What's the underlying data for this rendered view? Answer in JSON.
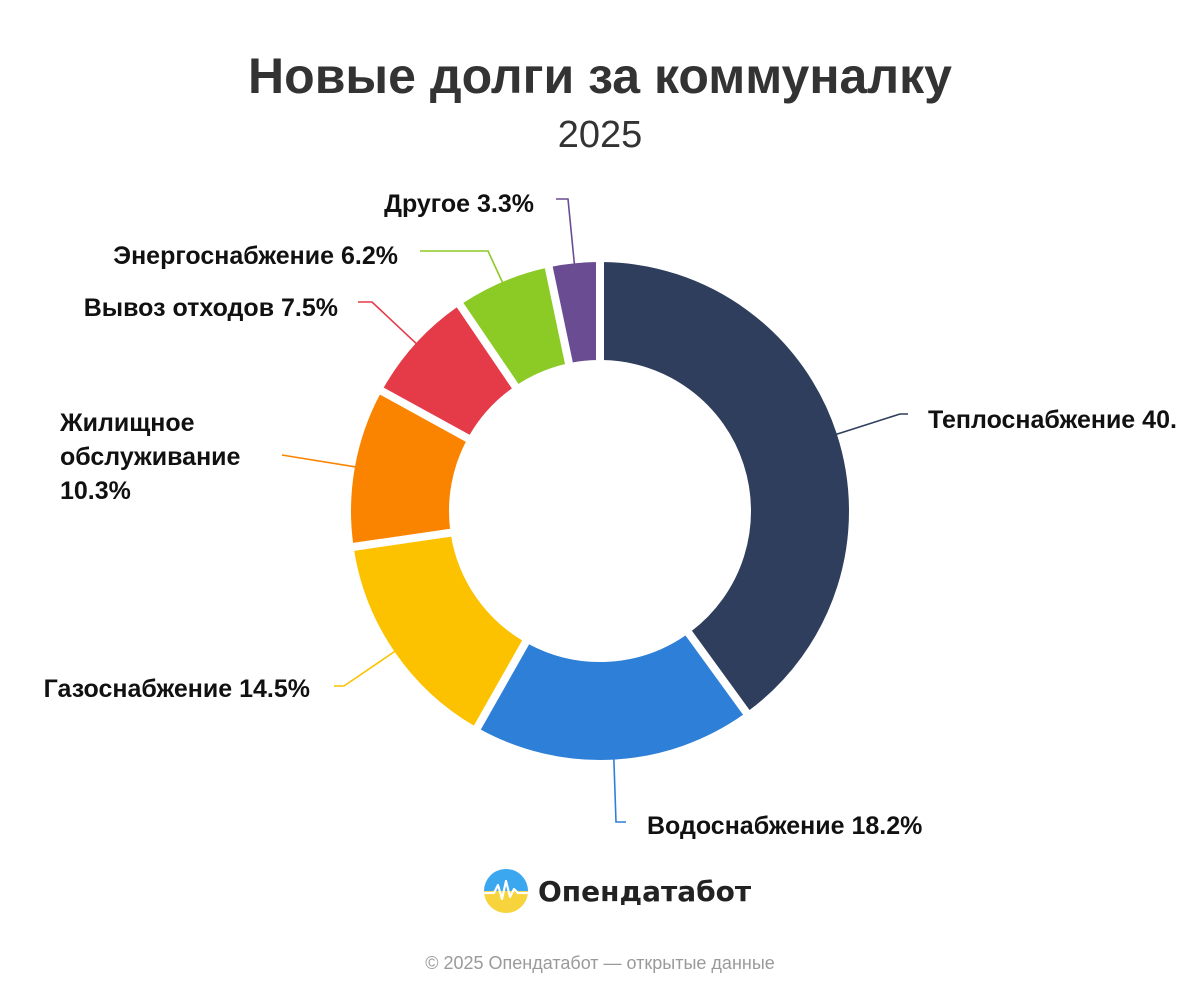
{
  "chart_data": {
    "type": "pie",
    "title": "Новые долги за коммуналку",
    "subtitle": "2025",
    "categories": [
      "Теплоснабжение",
      "Водоснабжение",
      "Газоснабжение",
      "Жилищное обслуживание",
      "Вывоз отходов",
      "Энергоснабжение",
      "Другое"
    ],
    "values": [
      40.0,
      18.2,
      14.5,
      10.3,
      7.5,
      6.2,
      3.3
    ],
    "labels": [
      "Теплоснабжение 40.",
      "Водоснабжение 18.2%",
      "Газоснабжение 14.5%",
      "Жилищное\nобслуживание\n10.3%",
      "Вывоз отходов 7.5%",
      "Энергоснабжение 6.2%",
      "Другое 3.3%"
    ],
    "colors": [
      "#2f3e5c",
      "#2e7fd8",
      "#fcc200",
      "#fa8400",
      "#e53a47",
      "#8cca26",
      "#6a4c93"
    ],
    "donut": true,
    "start_angle_deg": 0,
    "direction": "clockwise",
    "legend": "none"
  },
  "brand": {
    "name": "Опендатабот",
    "logo": "opendatabot-logo-icon"
  },
  "footer": {
    "text": "© 2025 Опендатабот — открытые данные"
  }
}
